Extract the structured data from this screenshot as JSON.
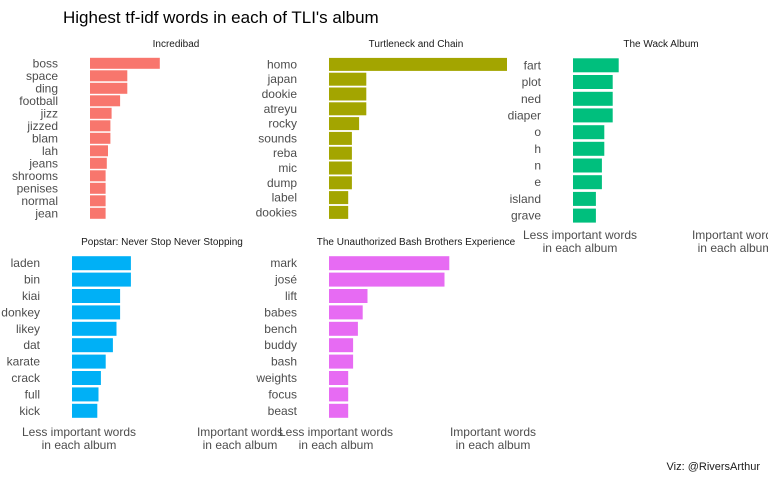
{
  "title": "Highest tf-idf words in each of TLI's album",
  "caption": "Viz: @RiversArthur",
  "chart_data": [
    {
      "type": "bar",
      "orientation": "horizontal",
      "title": "Incredibad",
      "color": "#F8766D",
      "categories": [
        "boss",
        "space",
        "ding",
        "football",
        "jizz",
        "jizzed",
        "blam",
        "lah",
        "jeans",
        "shrooms",
        "penises",
        "normal",
        "jean"
      ],
      "values": [
        0.029,
        0.0155,
        0.0155,
        0.0125,
        0.009,
        0.0085,
        0.0085,
        0.0075,
        0.007,
        0.0065,
        0.0065,
        0.0065,
        0.0065
      ],
      "xlabel_left": "",
      "xlabel_right": "",
      "grid": false
    },
    {
      "type": "bar",
      "orientation": "horizontal",
      "title": "Turtleneck and Chain",
      "color": "#A3A500",
      "categories": [
        "homo",
        "japan",
        "dookie",
        "atreyu",
        "rocky",
        "sounds",
        "reba",
        "mic",
        "dump",
        "label",
        "dookies"
      ],
      "values": [
        0.074,
        0.0155,
        0.0155,
        0.0155,
        0.0125,
        0.0095,
        0.0095,
        0.0095,
        0.0095,
        0.008,
        0.008
      ],
      "xlabel_left": "",
      "xlabel_right": "",
      "grid": false
    },
    {
      "type": "bar",
      "orientation": "horizontal",
      "title": "The Wack Album",
      "color": "#00BF7D",
      "categories": [
        "fart",
        "plot",
        "ned",
        "diaper",
        "o",
        "h",
        "n",
        "e",
        "island",
        "grave"
      ],
      "values": [
        0.019,
        0.0165,
        0.0165,
        0.0165,
        0.013,
        0.013,
        0.012,
        0.012,
        0.0095,
        0.0095
      ],
      "xlabel_left": "Less important words\nin each album",
      "xlabel_right": "Important words\nin each album",
      "grid": false
    },
    {
      "type": "bar",
      "orientation": "horizontal",
      "title": "Popstar: Never Stop Never Stopping",
      "color": "#00B0F6",
      "categories": [
        "laden",
        "bin",
        "kiai",
        "donkey",
        "likey",
        "dat",
        "karate",
        "crack",
        "full",
        "kick"
      ],
      "values": [
        0.0245,
        0.0245,
        0.02,
        0.02,
        0.0185,
        0.017,
        0.014,
        0.012,
        0.011,
        0.0105
      ],
      "xlabel_left": "Less important words\nin each album",
      "xlabel_right": "Important words\nin each album",
      "grid": false
    },
    {
      "type": "bar",
      "orientation": "horizontal",
      "title": "The Unauthorized Bash Brothers Experience",
      "color": "#E76BF3",
      "categories": [
        "mark",
        "josé",
        "lift",
        "babes",
        "bench",
        "buddy",
        "bash",
        "weights",
        "focus",
        "beast"
      ],
      "values": [
        0.05,
        0.048,
        0.016,
        0.014,
        0.012,
        0.01,
        0.01,
        0.008,
        0.008,
        0.008
      ],
      "xlabel_left": "Less important words\nin each album",
      "xlabel_right": "Important words\nin each album",
      "grid": false
    }
  ]
}
